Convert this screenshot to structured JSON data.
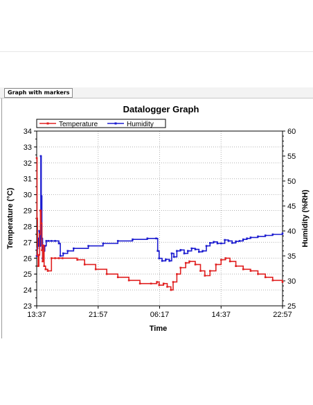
{
  "tab": {
    "label": "Graph with markers"
  },
  "chart_data": {
    "type": "line",
    "title": "Datalogger Graph",
    "xlabel": "Time",
    "ylabel_left": "Temperature (°C)",
    "ylabel_right": "Humidity (%RH)",
    "x_ticks": [
      "13:37",
      "21:57",
      "06:17",
      "14:37",
      "22:57"
    ],
    "y_left_ticks": [
      23,
      24,
      25,
      26,
      27,
      28,
      29,
      30,
      31,
      32,
      33,
      34
    ],
    "y_right_ticks": [
      25,
      30,
      35,
      40,
      45,
      50,
      55,
      60
    ],
    "ylim_left": [
      23,
      34
    ],
    "ylim_right": [
      25,
      60
    ],
    "x_range_hours": [
      0,
      33.33
    ],
    "grid": true,
    "legend_position": "top-left",
    "colors": {
      "Temperature": "#e02020",
      "Humidity": "#1c1cd0"
    },
    "series": [
      {
        "name": "Temperature",
        "axis": "left",
        "x": [
          0,
          0.05,
          0.1,
          0.2,
          0.3,
          0.4,
          0.5,
          0.6,
          0.7,
          0.8,
          0.9,
          1.0,
          1.2,
          1.5,
          2.0,
          2.5,
          3.0,
          3.5,
          5.5,
          6.5,
          8.0,
          9.5,
          11.0,
          12.5,
          14.0,
          15.5,
          16.3,
          16.6,
          17.2,
          17.7,
          18.2,
          18.5,
          19.0,
          19.5,
          20.2,
          20.7,
          21.5,
          22.2,
          22.8,
          23.5,
          24.3,
          25.0,
          25.6,
          26.2,
          27.0,
          28.0,
          29.0,
          30.0,
          31.0,
          32.0,
          33.33
        ],
        "y": [
          32.3,
          28.5,
          26.2,
          25.5,
          26.2,
          27.5,
          29.0,
          28.2,
          26.5,
          25.8,
          26.8,
          25.5,
          25.3,
          25.2,
          26.0,
          26.0,
          26.0,
          26.0,
          25.9,
          25.6,
          25.3,
          25.0,
          24.8,
          24.6,
          24.4,
          24.4,
          24.5,
          24.3,
          24.4,
          24.2,
          24.0,
          24.5,
          25.0,
          25.4,
          25.7,
          25.8,
          25.6,
          25.2,
          24.9,
          25.2,
          25.6,
          25.9,
          26.0,
          25.8,
          25.5,
          25.3,
          25.2,
          25.0,
          24.8,
          24.6,
          24.5
        ]
      },
      {
        "name": "Humidity",
        "axis": "right",
        "x": [
          0,
          0.08,
          0.15,
          0.25,
          0.35,
          0.45,
          0.55,
          0.62,
          0.7,
          0.8,
          0.9,
          1.0,
          1.1,
          1.3,
          1.6,
          2.0,
          2.5,
          3.0,
          3.2,
          3.6,
          4.2,
          5.0,
          7.0,
          9.0,
          11.0,
          13.0,
          15.0,
          16.2,
          16.4,
          16.6,
          17.0,
          17.5,
          18.0,
          18.3,
          18.6,
          19.0,
          19.5,
          20.0,
          20.5,
          21.0,
          21.5,
          22.0,
          22.5,
          23.0,
          23.5,
          24.0,
          24.5,
          25.0,
          25.5,
          26.0,
          26.5,
          27.0,
          27.5,
          28.0,
          28.5,
          29.0,
          30.0,
          31.0,
          32.0,
          33.33
        ],
        "y": [
          35,
          36.5,
          38.5,
          37.0,
          40.0,
          37.0,
          55.0,
          47.0,
          38.5,
          34.5,
          37.0,
          36.0,
          37.0,
          38.0,
          38.0,
          38.0,
          38.0,
          37.5,
          35.0,
          35.5,
          36.0,
          36.5,
          37.0,
          37.5,
          38.0,
          38.3,
          38.5,
          38.5,
          36.0,
          34.5,
          34.0,
          34.3,
          34.0,
          35.5,
          34.8,
          36.0,
          36.2,
          35.5,
          36.0,
          36.5,
          36.3,
          35.8,
          36.0,
          37.0,
          37.6,
          37.8,
          37.5,
          37.5,
          38.2,
          38.0,
          37.6,
          37.9,
          38.0,
          38.3,
          38.5,
          38.7,
          38.9,
          39.1,
          39.3,
          39.5
        ]
      }
    ]
  }
}
